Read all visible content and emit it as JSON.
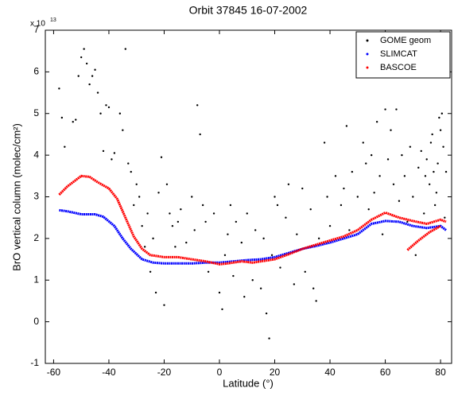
{
  "chart_data": {
    "type": "scatter",
    "title": "Orbit 37845 16-07-2002",
    "x_label": "Latitude (°)",
    "y_label": "BrO vertical column (molec/cm²)",
    "y_scale_label": "x 10",
    "y_scale_exponent": "13",
    "xlim": [
      -63,
      84
    ],
    "xticks": [
      -60,
      -40,
      -20,
      0,
      20,
      40,
      60,
      80
    ],
    "ylim": [
      -1,
      7
    ],
    "yticks": [
      -1,
      0,
      1,
      2,
      3,
      4,
      5,
      6,
      7
    ],
    "legend": "upper right",
    "series": [
      {
        "name": "GOME geom",
        "color": "#000000",
        "mode": "markers",
        "x": [
          -58,
          -57,
          -56,
          -53,
          -52,
          -51,
          -50,
          -49,
          -48,
          -47,
          -46,
          -45,
          -44,
          -43,
          -42,
          -41,
          -40,
          -39,
          -38,
          -36,
          -35,
          -34,
          -33,
          -32,
          -31,
          -30,
          -29,
          -28,
          -27,
          -26,
          -25,
          -24,
          -23,
          -22,
          -21,
          -20,
          -19,
          -18,
          -17,
          -16,
          -15,
          -14,
          -12,
          -10,
          -9,
          -8,
          -7,
          -6,
          -5,
          -4,
          -2,
          0,
          1,
          2,
          3,
          4,
          5,
          6,
          8,
          9,
          10,
          12,
          13,
          15,
          16,
          17,
          18,
          19,
          20,
          21,
          22,
          24,
          25,
          27,
          28,
          30,
          31,
          33,
          34,
          35,
          36,
          38,
          39,
          40,
          42,
          44,
          45,
          46,
          47,
          48,
          50,
          52,
          53,
          54,
          55,
          56,
          57,
          58,
          59,
          60,
          61,
          62,
          63,
          64,
          65,
          66,
          67,
          68,
          69,
          70,
          71,
          72,
          73,
          74,
          75,
          76,
          77,
          78,
          79,
          80,
          81,
          82,
          78.5,
          80.5,
          81.5,
          79.5,
          77.5,
          76.5,
          74.5
        ],
        "values": [
          5.6,
          4.9,
          4.2,
          4.8,
          4.85,
          5.9,
          6.35,
          6.55,
          6.2,
          5.7,
          5.9,
          6.05,
          5.5,
          5.0,
          4.1,
          5.2,
          5.15,
          3.9,
          4.05,
          5.0,
          4.6,
          6.55,
          3.8,
          3.6,
          2.8,
          3.3,
          3.0,
          2.3,
          1.8,
          2.6,
          1.2,
          2.0,
          0.7,
          3.1,
          3.95,
          0.4,
          3.3,
          2.6,
          2.3,
          1.8,
          2.4,
          2.7,
          1.9,
          3.0,
          2.2,
          5.2,
          4.5,
          2.8,
          2.4,
          1.2,
          2.6,
          0.7,
          0.3,
          1.6,
          2.1,
          2.8,
          1.1,
          2.4,
          1.9,
          0.6,
          2.6,
          1.0,
          2.2,
          0.8,
          2.0,
          0.2,
          -0.4,
          1.6,
          3.0,
          2.8,
          1.3,
          2.5,
          3.3,
          0.9,
          2.1,
          3.2,
          1.2,
          2.7,
          0.8,
          0.5,
          2.0,
          4.3,
          3.0,
          2.3,
          3.5,
          2.8,
          3.2,
          4.7,
          2.2,
          3.6,
          3.0,
          4.3,
          3.8,
          2.7,
          4.0,
          3.1,
          4.8,
          3.5,
          2.1,
          5.1,
          3.9,
          4.6,
          3.3,
          5.1,
          2.9,
          4.0,
          3.5,
          2.4,
          4.2,
          3.0,
          1.6,
          3.7,
          4.1,
          2.6,
          3.9,
          3.3,
          4.5,
          2.8,
          3.8,
          4.6,
          4.2,
          3.6,
          3.1,
          5.0,
          2.5,
          4.9,
          3.6,
          4.3,
          3.5
        ]
      },
      {
        "name": "SLIMCAT",
        "color": "#0000ff",
        "mode": "lines",
        "x": [
          -58,
          -55,
          -50,
          -45,
          -42,
          -38,
          -35,
          -32,
          -28,
          -24,
          -20,
          -15,
          -10,
          -5,
          0,
          5,
          10,
          15,
          20,
          25,
          30,
          35,
          40,
          45,
          50,
          55,
          60,
          65,
          70,
          75,
          80,
          82
        ],
        "values": [
          2.68,
          2.65,
          2.58,
          2.58,
          2.52,
          2.3,
          2.0,
          1.75,
          1.5,
          1.42,
          1.4,
          1.4,
          1.4,
          1.42,
          1.42,
          1.45,
          1.48,
          1.5,
          1.55,
          1.65,
          1.75,
          1.82,
          1.9,
          2.0,
          2.1,
          2.35,
          2.42,
          2.4,
          2.3,
          2.25,
          2.3,
          2.2
        ]
      },
      {
        "name": "BASCOE",
        "color": "#ff0000",
        "mode": "lines",
        "x": [
          -58,
          -55,
          -50,
          -47,
          -44,
          -40,
          -37,
          -34,
          -31,
          -28,
          -25,
          -20,
          -15,
          -10,
          -5,
          0,
          3,
          8,
          12,
          15,
          20,
          25,
          30,
          35,
          40,
          45,
          50,
          55,
          60,
          65,
          70,
          75,
          80,
          82,
          null,
          68,
          72,
          76,
          80
        ],
        "values": [
          3.05,
          3.25,
          3.5,
          3.48,
          3.35,
          3.2,
          2.95,
          2.5,
          2.05,
          1.75,
          1.6,
          1.55,
          1.55,
          1.5,
          1.45,
          1.38,
          1.4,
          1.45,
          1.42,
          1.45,
          1.5,
          1.62,
          1.75,
          1.85,
          1.95,
          2.05,
          2.2,
          2.45,
          2.62,
          2.5,
          2.42,
          2.35,
          2.45,
          2.4,
          null,
          1.72,
          1.95,
          2.15,
          2.3
        ]
      }
    ]
  }
}
